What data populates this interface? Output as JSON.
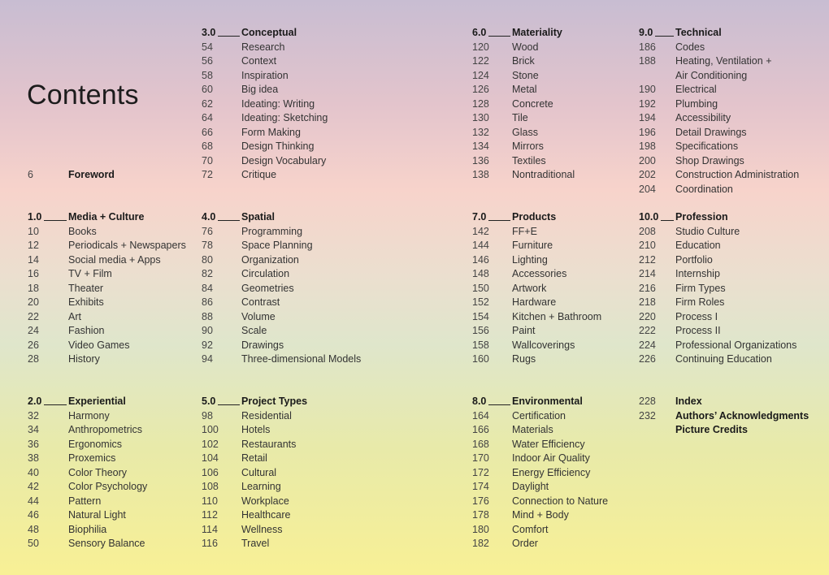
{
  "page_title": "Contents",
  "blocks": [
    {
      "col": 1,
      "row": "r216",
      "items": [
        {
          "page": "6",
          "title": "Foreword",
          "bold": true
        }
      ]
    },
    {
      "col": 1,
      "row": "r268",
      "number": "1.0",
      "heading": "Media + Culture",
      "items": [
        {
          "page": "10",
          "title": "Books"
        },
        {
          "page": "12",
          "title": "Periodicals + Newspapers"
        },
        {
          "page": "14",
          "title": "Social media + Apps"
        },
        {
          "page": "16",
          "title": "TV + Film"
        },
        {
          "page": "18",
          "title": "Theater"
        },
        {
          "page": "20",
          "title": "Exhibits"
        },
        {
          "page": "22",
          "title": "Art"
        },
        {
          "page": "24",
          "title": "Fashion"
        },
        {
          "page": "26",
          "title": "Video Games"
        },
        {
          "page": "28",
          "title": "History"
        }
      ]
    },
    {
      "col": 1,
      "row": "r495",
      "number": "2.0",
      "heading": "Experiential",
      "items": [
        {
          "page": "32",
          "title": "Harmony"
        },
        {
          "page": "34",
          "title": "Anthropometrics"
        },
        {
          "page": "36",
          "title": "Ergonomics"
        },
        {
          "page": "38",
          "title": "Proxemics"
        },
        {
          "page": "40",
          "title": "Color Theory"
        },
        {
          "page": "42",
          "title": "Color Psychology"
        },
        {
          "page": "44",
          "title": "Pattern"
        },
        {
          "page": "46",
          "title": "Natural Light"
        },
        {
          "page": "48",
          "title": "Biophilia"
        },
        {
          "page": "50",
          "title": "Sensory Balance"
        }
      ]
    },
    {
      "col": 2,
      "row": "r41",
      "number": "3.0",
      "heading": "Conceptual",
      "items": [
        {
          "page": "54",
          "title": "Research"
        },
        {
          "page": "56",
          "title": "Context"
        },
        {
          "page": "58",
          "title": "Inspiration"
        },
        {
          "page": "60",
          "title": "Big idea"
        },
        {
          "page": "62",
          "title": "Ideating: Writing"
        },
        {
          "page": "64",
          "title": "Ideating: Sketching"
        },
        {
          "page": "66",
          "title": "Form Making"
        },
        {
          "page": "68",
          "title": "Design Thinking"
        },
        {
          "page": "70",
          "title": "Design Vocabulary"
        },
        {
          "page": "72",
          "title": "Critique"
        }
      ]
    },
    {
      "col": 2,
      "row": "r268",
      "number": "4.0",
      "heading": "Spatial",
      "items": [
        {
          "page": "76",
          "title": "Programming"
        },
        {
          "page": "78",
          "title": "Space Planning"
        },
        {
          "page": "80",
          "title": "Organization"
        },
        {
          "page": "82",
          "title": "Circulation"
        },
        {
          "page": "84",
          "title": "Geometries"
        },
        {
          "page": "86",
          "title": "Contrast"
        },
        {
          "page": "88",
          "title": "Volume"
        },
        {
          "page": "90",
          "title": "Scale"
        },
        {
          "page": "92",
          "title": "Drawings"
        },
        {
          "page": "94",
          "title": "Three-dimensional Models"
        }
      ]
    },
    {
      "col": 2,
      "row": "r495",
      "number": "5.0",
      "heading": "Project Types",
      "items": [
        {
          "page": "98",
          "title": "Residential"
        },
        {
          "page": "100",
          "title": "Hotels"
        },
        {
          "page": "102",
          "title": "Restaurants"
        },
        {
          "page": "104",
          "title": "Retail"
        },
        {
          "page": "106",
          "title": "Cultural"
        },
        {
          "page": "108",
          "title": "Learning"
        },
        {
          "page": "110",
          "title": "Workplace"
        },
        {
          "page": "112",
          "title": "Healthcare"
        },
        {
          "page": "114",
          "title": "Wellness"
        },
        {
          "page": "116",
          "title": "Travel"
        }
      ]
    },
    {
      "col": 3,
      "row": "r41",
      "number": "6.0",
      "heading": "Materiality",
      "items": [
        {
          "page": "120",
          "title": "Wood"
        },
        {
          "page": "122",
          "title": "Brick"
        },
        {
          "page": "124",
          "title": "Stone"
        },
        {
          "page": "126",
          "title": "Metal"
        },
        {
          "page": "128",
          "title": "Concrete"
        },
        {
          "page": "130",
          "title": "Tile"
        },
        {
          "page": "132",
          "title": "Glass"
        },
        {
          "page": "134",
          "title": "Mirrors"
        },
        {
          "page": "136",
          "title": "Textiles"
        },
        {
          "page": "138",
          "title": "Nontraditional"
        }
      ]
    },
    {
      "col": 3,
      "row": "r268",
      "number": "7.0",
      "heading": "Products",
      "items": [
        {
          "page": "142",
          "title": "FF+E"
        },
        {
          "page": "144",
          "title": "Furniture"
        },
        {
          "page": "146",
          "title": "Lighting"
        },
        {
          "page": "148",
          "title": "Accessories"
        },
        {
          "page": "150",
          "title": "Artwork"
        },
        {
          "page": "152",
          "title": "Hardware"
        },
        {
          "page": "154",
          "title": "Kitchen + Bathroom"
        },
        {
          "page": "156",
          "title": "Paint"
        },
        {
          "page": "158",
          "title": "Wallcoverings"
        },
        {
          "page": "160",
          "title": "Rugs"
        }
      ]
    },
    {
      "col": 3,
      "row": "r495",
      "number": "8.0",
      "heading": "Environmental",
      "items": [
        {
          "page": "164",
          "title": "Certification"
        },
        {
          "page": "166",
          "title": "Materials"
        },
        {
          "page": "168",
          "title": "Water Efficiency"
        },
        {
          "page": "170",
          "title": "Indoor Air Quality"
        },
        {
          "page": "172",
          "title": "Energy Efficiency"
        },
        {
          "page": "174",
          "title": "Daylight"
        },
        {
          "page": "176",
          "title": "Connection to Nature"
        },
        {
          "page": "178",
          "title": "Mind + Body"
        },
        {
          "page": "180",
          "title": "Comfort"
        },
        {
          "page": "182",
          "title": "Order"
        }
      ]
    },
    {
      "col": 4,
      "row": "r41",
      "number": "9.0",
      "heading": "Technical",
      "items": [
        {
          "page": "186",
          "title": "Codes"
        },
        {
          "page": "188",
          "title": "Heating, Ventilation +\nAir Conditioning"
        },
        {
          "page": "190",
          "title": "Electrical"
        },
        {
          "page": "192",
          "title": "Plumbing"
        },
        {
          "page": "194",
          "title": "Accessibility"
        },
        {
          "page": "196",
          "title": "Detail Drawings"
        },
        {
          "page": "198",
          "title": "Specifications"
        },
        {
          "page": "200",
          "title": "Shop Drawings"
        },
        {
          "page": "202",
          "title": "Construction Administration"
        },
        {
          "page": "204",
          "title": "Coordination"
        }
      ]
    },
    {
      "col": 4,
      "row": "r268",
      "number": "10.0",
      "heading": "Profession",
      "items": [
        {
          "page": "208",
          "title": "Studio Culture"
        },
        {
          "page": "210",
          "title": "Education"
        },
        {
          "page": "212",
          "title": "Portfolio"
        },
        {
          "page": "214",
          "title": "Internship"
        },
        {
          "page": "216",
          "title": "Firm Types"
        },
        {
          "page": "218",
          "title": "Firm Roles"
        },
        {
          "page": "220",
          "title": "Process I"
        },
        {
          "page": "222",
          "title": "Process II"
        },
        {
          "page": "224",
          "title": "Professional Organizations"
        },
        {
          "page": "226",
          "title": "Continuing Education"
        }
      ]
    },
    {
      "col": 4,
      "row": "r495",
      "items": [
        {
          "page": "228",
          "title": "Index",
          "bold": true
        },
        {
          "page": "232",
          "title": "Authors’ Acknowledgments",
          "bold": true
        },
        {
          "page": "",
          "title": "Picture Credits",
          "bold": true
        }
      ]
    }
  ]
}
